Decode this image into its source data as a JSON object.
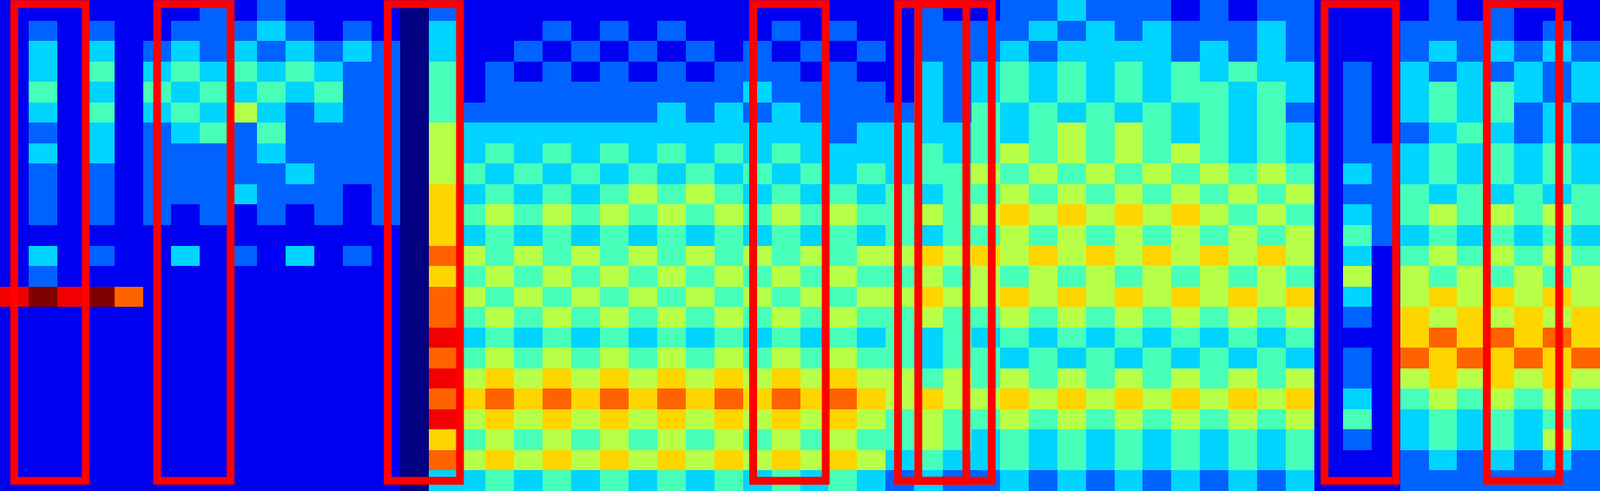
{
  "chart_data": {
    "type": "heatmap",
    "tick_labels": false,
    "xlim": [
      0,
      56
    ],
    "ylim": [
      0,
      24
    ],
    "color_range": [
      0,
      9
    ],
    "cells": [
      [
        1,
        1,
        1,
        1,
        1,
        1,
        1,
        2,
        1,
        2,
        1,
        1,
        1,
        1,
        0,
        2,
        1,
        1,
        1,
        1,
        1,
        1,
        1,
        1,
        1,
        1,
        1,
        1,
        1,
        1,
        1,
        1,
        2,
        1,
        1,
        2,
        2,
        3,
        2,
        2,
        2,
        1,
        2,
        1,
        2,
        2,
        1,
        1,
        1,
        1,
        2,
        1,
        2,
        1,
        1,
        1
      ],
      [
        1,
        2,
        1,
        2,
        1,
        1,
        2,
        2,
        2,
        3,
        2,
        1,
        2,
        1,
        0,
        3,
        1,
        1,
        1,
        2,
        1,
        2,
        1,
        2,
        1,
        1,
        1,
        2,
        1,
        2,
        1,
        1,
        2,
        2,
        2,
        2,
        3,
        2,
        3,
        2,
        3,
        2,
        2,
        2,
        3,
        2,
        1,
        1,
        1,
        2,
        2,
        2,
        2,
        1,
        2,
        1
      ],
      [
        1,
        3,
        1,
        3,
        1,
        2,
        3,
        2,
        3,
        2,
        3,
        2,
        3,
        2,
        0,
        3,
        1,
        1,
        2,
        1,
        2,
        1,
        2,
        1,
        2,
        1,
        2,
        1,
        2,
        1,
        2,
        1,
        2,
        2,
        2,
        3,
        2,
        3,
        3,
        3,
        3,
        2,
        3,
        2,
        3,
        2,
        1,
        1,
        1,
        2,
        3,
        2,
        3,
        2,
        3,
        2
      ],
      [
        1,
        3,
        1,
        4,
        1,
        3,
        4,
        3,
        4,
        3,
        4,
        3,
        2,
        2,
        0,
        4,
        1,
        2,
        1,
        2,
        1,
        2,
        1,
        2,
        1,
        2,
        2,
        2,
        1,
        2,
        1,
        1,
        3,
        2,
        3,
        4,
        3,
        4,
        3,
        4,
        3,
        4,
        3,
        4,
        3,
        3,
        1,
        2,
        1,
        3,
        2,
        3,
        2,
        3,
        2,
        3
      ],
      [
        1,
        4,
        1,
        3,
        1,
        4,
        3,
        4,
        3,
        4,
        3,
        4,
        2,
        2,
        0,
        4,
        1,
        2,
        2,
        2,
        2,
        2,
        2,
        2,
        2,
        2,
        3,
        2,
        2,
        2,
        2,
        1,
        3,
        2,
        3,
        4,
        3,
        4,
        3,
        4,
        3,
        4,
        4,
        3,
        4,
        3,
        1,
        2,
        1,
        3,
        4,
        3,
        4,
        3,
        2,
        3
      ],
      [
        1,
        3,
        1,
        4,
        1,
        3,
        4,
        3,
        5,
        3,
        2,
        3,
        2,
        2,
        0,
        4,
        2,
        2,
        2,
        2,
        2,
        2,
        2,
        3,
        2,
        3,
        2,
        3,
        2,
        2,
        2,
        2,
        3,
        2,
        4,
        3,
        4,
        3,
        4,
        3,
        4,
        3,
        4,
        3,
        4,
        2,
        1,
        2,
        1,
        3,
        4,
        3,
        4,
        2,
        3,
        2
      ],
      [
        1,
        2,
        1,
        3,
        1,
        2,
        3,
        4,
        2,
        4,
        2,
        2,
        2,
        2,
        0,
        5,
        3,
        3,
        3,
        3,
        3,
        3,
        3,
        3,
        3,
        3,
        3,
        3,
        3,
        2,
        3,
        3,
        3,
        3,
        4,
        3,
        4,
        5,
        4,
        5,
        4,
        3,
        4,
        3,
        4,
        3,
        1,
        2,
        1,
        2,
        3,
        4,
        3,
        2,
        3,
        2
      ],
      [
        1,
        3,
        1,
        3,
        1,
        2,
        2,
        2,
        2,
        3,
        2,
        2,
        2,
        2,
        0,
        5,
        3,
        4,
        3,
        4,
        3,
        4,
        3,
        4,
        3,
        4,
        3,
        4,
        3,
        3,
        3,
        3,
        4,
        3,
        4,
        5,
        4,
        5,
        4,
        5,
        4,
        5,
        4,
        3,
        4,
        3,
        1,
        2,
        2,
        3,
        4,
        3,
        4,
        3,
        4,
        3
      ],
      [
        1,
        2,
        1,
        2,
        1,
        2,
        2,
        2,
        2,
        2,
        3,
        2,
        2,
        2,
        0,
        5,
        4,
        3,
        4,
        3,
        4,
        3,
        4,
        3,
        4,
        3,
        4,
        3,
        4,
        3,
        4,
        3,
        4,
        4,
        5,
        4,
        5,
        4,
        5,
        4,
        5,
        4,
        5,
        4,
        5,
        4,
        1,
        3,
        2,
        3,
        4,
        3,
        4,
        3,
        4,
        3
      ],
      [
        1,
        2,
        1,
        2,
        1,
        2,
        2,
        2,
        3,
        2,
        2,
        2,
        1,
        2,
        0,
        6,
        3,
        4,
        3,
        4,
        3,
        4,
        5,
        4,
        5,
        4,
        3,
        4,
        3,
        4,
        3,
        4,
        3,
        4,
        4,
        5,
        4,
        5,
        4,
        5,
        4,
        5,
        4,
        5,
        4,
        5,
        1,
        2,
        2,
        4,
        3,
        4,
        3,
        4,
        3,
        4
      ],
      [
        1,
        2,
        1,
        2,
        1,
        2,
        1,
        2,
        1,
        2,
        1,
        2,
        1,
        2,
        0,
        6,
        4,
        5,
        4,
        5,
        4,
        5,
        4,
        5,
        4,
        5,
        4,
        5,
        4,
        5,
        4,
        4,
        5,
        4,
        5,
        6,
        5,
        6,
        5,
        6,
        5,
        6,
        5,
        4,
        5,
        4,
        1,
        3,
        2,
        4,
        5,
        4,
        5,
        4,
        5,
        4
      ],
      [
        1,
        1,
        1,
        1,
        1,
        1,
        1,
        1,
        1,
        1,
        1,
        1,
        1,
        1,
        0,
        6,
        3,
        4,
        3,
        4,
        3,
        4,
        3,
        4,
        3,
        4,
        3,
        4,
        3,
        4,
        3,
        4,
        3,
        4,
        4,
        5,
        4,
        5,
        4,
        5,
        4,
        5,
        4,
        5,
        4,
        5,
        1,
        4,
        2,
        3,
        4,
        3,
        4,
        3,
        4,
        3
      ],
      [
        1,
        3,
        1,
        2,
        1,
        1,
        3,
        1,
        2,
        1,
        3,
        1,
        2,
        1,
        0,
        7,
        5,
        4,
        5,
        4,
        5,
        4,
        5,
        4,
        5,
        4,
        5,
        4,
        5,
        4,
        5,
        5,
        6,
        5,
        6,
        5,
        6,
        5,
        6,
        5,
        6,
        5,
        6,
        5,
        6,
        5,
        1,
        3,
        1,
        4,
        5,
        4,
        5,
        4,
        5,
        4
      ],
      [
        1,
        2,
        1,
        1,
        1,
        1,
        1,
        1,
        1,
        1,
        1,
        1,
        1,
        1,
        0,
        6,
        4,
        5,
        4,
        5,
        4,
        5,
        4,
        5,
        4,
        5,
        4,
        5,
        4,
        5,
        4,
        4,
        5,
        4,
        5,
        4,
        5,
        4,
        5,
        4,
        5,
        4,
        5,
        4,
        5,
        4,
        1,
        5,
        1,
        5,
        4,
        5,
        4,
        5,
        4,
        5
      ],
      [
        8,
        9,
        8,
        9,
        7,
        1,
        1,
        1,
        1,
        1,
        1,
        1,
        1,
        1,
        0,
        7,
        5,
        4,
        5,
        4,
        5,
        4,
        5,
        4,
        5,
        4,
        5,
        4,
        5,
        4,
        5,
        5,
        6,
        5,
        5,
        6,
        5,
        6,
        5,
        6,
        5,
        6,
        5,
        6,
        5,
        6,
        1,
        3,
        1,
        5,
        6,
        5,
        6,
        5,
        6,
        5
      ],
      [
        1,
        1,
        1,
        1,
        1,
        1,
        1,
        1,
        1,
        1,
        1,
        1,
        1,
        1,
        0,
        7,
        4,
        5,
        4,
        5,
        4,
        5,
        4,
        5,
        4,
        5,
        4,
        5,
        4,
        5,
        4,
        4,
        5,
        4,
        4,
        5,
        4,
        5,
        4,
        5,
        4,
        5,
        4,
        5,
        4,
        5,
        1,
        2,
        1,
        6,
        5,
        6,
        5,
        6,
        5,
        6
      ],
      [
        1,
        1,
        1,
        1,
        1,
        1,
        1,
        1,
        1,
        1,
        1,
        1,
        1,
        1,
        0,
        8,
        3,
        4,
        3,
        4,
        3,
        4,
        3,
        4,
        3,
        4,
        3,
        4,
        3,
        4,
        3,
        4,
        3,
        4,
        3,
        4,
        3,
        4,
        3,
        4,
        3,
        4,
        3,
        4,
        3,
        4,
        1,
        1,
        1,
        6,
        7,
        6,
        7,
        6,
        7,
        6
      ],
      [
        1,
        1,
        1,
        1,
        1,
        1,
        1,
        1,
        1,
        1,
        1,
        1,
        1,
        1,
        0,
        7,
        4,
        5,
        4,
        5,
        4,
        5,
        4,
        5,
        4,
        5,
        4,
        5,
        4,
        5,
        4,
        4,
        3,
        4,
        4,
        3,
        4,
        3,
        4,
        3,
        4,
        3,
        4,
        3,
        4,
        3,
        1,
        2,
        1,
        7,
        6,
        7,
        6,
        7,
        6,
        7
      ],
      [
        1,
        1,
        1,
        1,
        1,
        1,
        1,
        1,
        1,
        1,
        1,
        1,
        1,
        1,
        0,
        8,
        5,
        6,
        5,
        6,
        5,
        6,
        5,
        6,
        5,
        6,
        5,
        6,
        5,
        6,
        5,
        5,
        4,
        5,
        4,
        5,
        4,
        5,
        4,
        5,
        4,
        5,
        4,
        5,
        4,
        5,
        1,
        2,
        1,
        5,
        6,
        5,
        6,
        5,
        6,
        5
      ],
      [
        1,
        1,
        1,
        1,
        1,
        1,
        1,
        1,
        1,
        1,
        1,
        1,
        1,
        1,
        0,
        7,
        6,
        7,
        6,
        7,
        6,
        7,
        6,
        7,
        6,
        7,
        6,
        7,
        6,
        7,
        6,
        5,
        6,
        5,
        5,
        6,
        5,
        6,
        5,
        6,
        5,
        6,
        5,
        6,
        5,
        6,
        1,
        3,
        1,
        4,
        5,
        4,
        5,
        4,
        5,
        4
      ],
      [
        1,
        1,
        1,
        1,
        1,
        1,
        1,
        1,
        1,
        1,
        1,
        1,
        1,
        1,
        0,
        8,
        5,
        6,
        5,
        6,
        5,
        6,
        5,
        6,
        5,
        6,
        5,
        6,
        5,
        6,
        5,
        4,
        5,
        4,
        4,
        5,
        4,
        5,
        4,
        5,
        4,
        5,
        4,
        5,
        4,
        5,
        1,
        4,
        1,
        3,
        4,
        3,
        4,
        3,
        4,
        3
      ],
      [
        1,
        1,
        1,
        1,
        1,
        1,
        1,
        1,
        1,
        1,
        1,
        1,
        1,
        1,
        0,
        6,
        4,
        5,
        4,
        5,
        4,
        5,
        4,
        5,
        4,
        5,
        4,
        5,
        4,
        5,
        4,
        4,
        5,
        4,
        3,
        4,
        3,
        4,
        3,
        4,
        3,
        4,
        3,
        4,
        3,
        4,
        1,
        2,
        1,
        3,
        4,
        3,
        4,
        3,
        5,
        3
      ],
      [
        1,
        1,
        1,
        1,
        1,
        1,
        1,
        1,
        1,
        1,
        1,
        1,
        1,
        1,
        0,
        7,
        5,
        6,
        5,
        6,
        5,
        6,
        5,
        6,
        5,
        6,
        5,
        6,
        5,
        6,
        5,
        3,
        4,
        3,
        3,
        4,
        3,
        4,
        3,
        4,
        3,
        4,
        3,
        4,
        3,
        4,
        1,
        1,
        1,
        2,
        3,
        2,
        3,
        2,
        3,
        2
      ],
      [
        1,
        1,
        1,
        1,
        1,
        1,
        1,
        1,
        1,
        1,
        1,
        1,
        1,
        1,
        0,
        3,
        3,
        4,
        3,
        4,
        3,
        4,
        3,
        4,
        3,
        4,
        3,
        4,
        3,
        4,
        3,
        2,
        3,
        2,
        2,
        3,
        2,
        3,
        2,
        3,
        2,
        3,
        2,
        3,
        2,
        3,
        1,
        1,
        1,
        2,
        2,
        2,
        2,
        2,
        2,
        2
      ]
    ],
    "regions": [
      {
        "x": [
          0.5,
          3.0
        ],
        "y": [
          0.5,
          23.8
        ]
      },
      {
        "x": [
          5.5,
          8.07
        ],
        "y": [
          0.5,
          23.8
        ]
      },
      {
        "x": [
          13.57,
          16.1
        ],
        "y": [
          0.5,
          23.8
        ]
      },
      {
        "x": [
          26.36,
          28.9
        ],
        "y": [
          0.5,
          23.8
        ]
      },
      {
        "x": [
          31.43,
          33.82
        ],
        "y": [
          0.5,
          23.8
        ]
      },
      {
        "x": [
          32.14,
          34.71
        ],
        "y": [
          0.5,
          23.8
        ]
      },
      {
        "x": [
          46.36,
          48.86
        ],
        "y": [
          0.5,
          23.8
        ]
      },
      {
        "x": [
          52.04,
          54.57
        ],
        "y": [
          0.5,
          23.8
        ]
      }
    ]
  }
}
